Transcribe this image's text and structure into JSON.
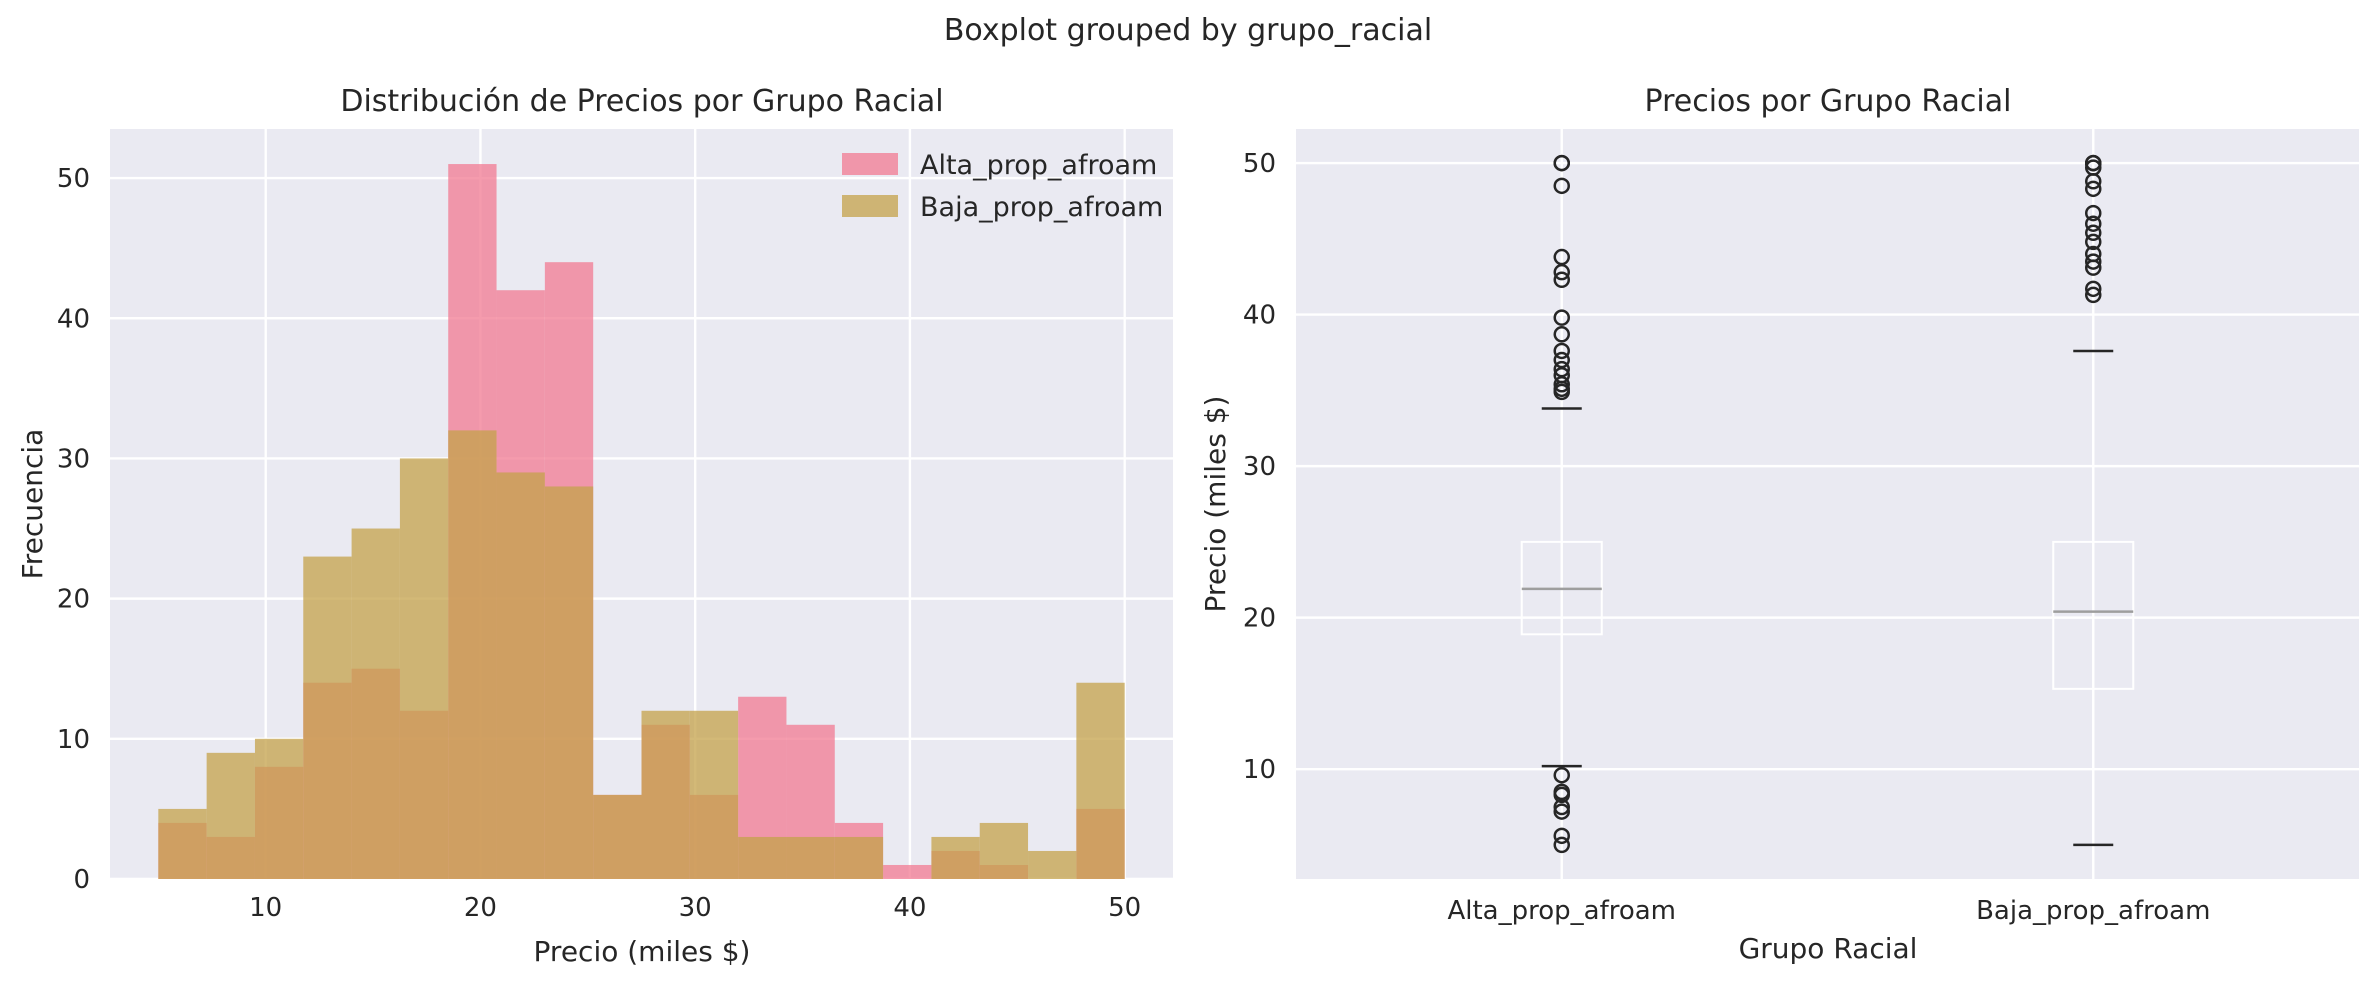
{
  "figure": {
    "suptitle": "Boxplot grouped by grupo_racial"
  },
  "colors": {
    "axes_bg": "#EAEAF2",
    "alta": "#F27A91",
    "baja": "#C4A24A",
    "box": "#FFFFFF",
    "median": "#9E9E9E",
    "outlier": "#262626",
    "cap": "#262626"
  },
  "chart_data": [
    {
      "type": "histogram",
      "title": "Distribución de Precios por Grupo Racial",
      "xlabel": "Precio (miles $)",
      "ylabel": "Frecuencia",
      "xlim": [
        2.75,
        52.25
      ],
      "ylim": [
        0,
        53.5
      ],
      "xticks": [
        10,
        20,
        30,
        40,
        50
      ],
      "yticks": [
        0,
        10,
        20,
        30,
        40,
        50
      ],
      "bin_edges": [
        5,
        7.25,
        9.5,
        11.75,
        14,
        16.25,
        18.5,
        20.75,
        23,
        25.25,
        27.5,
        29.75,
        32,
        34.25,
        36.5,
        38.75,
        41,
        43.25,
        45.5,
        47.75,
        50
      ],
      "legend": {
        "position": "upper-right",
        "entries": [
          "Alta_prop_afroam",
          "Baja_prop_afroam"
        ]
      },
      "series": [
        {
          "name": "Alta_prop_afroam",
          "color_key": "alta",
          "opacity": 0.75,
          "values": [
            4,
            3,
            8,
            14,
            15,
            12,
            51,
            42,
            44,
            6,
            11,
            6,
            13,
            11,
            4,
            1,
            2,
            1,
            0,
            5
          ]
        },
        {
          "name": "Baja_prop_afroam",
          "color_key": "baja",
          "opacity": 0.75,
          "values": [
            5,
            9,
            10,
            23,
            25,
            30,
            32,
            29,
            28,
            6,
            12,
            12,
            3,
            3,
            3,
            0,
            3,
            4,
            2,
            14
          ]
        }
      ]
    },
    {
      "type": "boxplot",
      "title": "Precios por Grupo Racial",
      "xlabel": "Grupo Racial",
      "ylabel": "Precio (miles $)",
      "ylim": [
        2.75,
        52.25
      ],
      "yticks": [
        10,
        20,
        30,
        40,
        50
      ],
      "categories": [
        "Alta_prop_afroam",
        "Baja_prop_afroam"
      ],
      "boxes": [
        {
          "name": "Alta_prop_afroam",
          "whisker_low": 10.2,
          "q1": 18.9,
          "median": 21.9,
          "q3": 25.0,
          "whisker_high": 33.8,
          "outliers": [
            50,
            50,
            48.5,
            43.8,
            42.8,
            42.3,
            39.8,
            38.7,
            37.6,
            37.0,
            36.4,
            36.0,
            35.4,
            35.1,
            34.9,
            9.6,
            8.5,
            8.3,
            7.5,
            7.2,
            5.6,
            5.0
          ]
        },
        {
          "name": "Baja_prop_afroam",
          "whisker_low": 5.0,
          "q1": 15.3,
          "median": 20.4,
          "q3": 25.0,
          "whisker_high": 37.6,
          "outliers": [
            50,
            50,
            50,
            49.7,
            48.8,
            48.3,
            46.7,
            46.0,
            45.4,
            44.8,
            44.0,
            43.5,
            43.1,
            41.7,
            41.3
          ]
        }
      ]
    }
  ]
}
